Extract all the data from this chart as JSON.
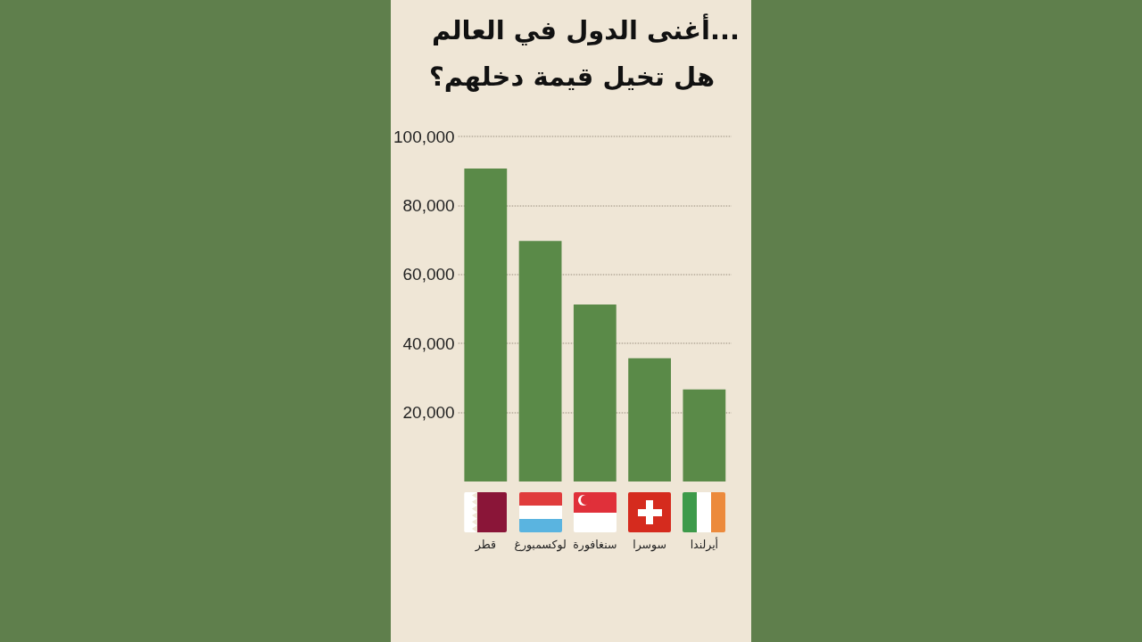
{
  "chart_data": {
    "type": "bar",
    "title": "أغنى الدول في العالم...",
    "subtitle": "هل تخيل قيمة دخلهم؟",
    "categories": [
      "قطر",
      "لوكسمبورغ",
      "سنغافورة",
      "سوسرا",
      "أيرلندا"
    ],
    "values": [
      90700,
      69700,
      51300,
      35700,
      26700
    ],
    "color": "#5a8a48",
    "ylim": [
      0,
      100000
    ],
    "yticks": [
      {
        "value": 20000,
        "label": "20,000"
      },
      {
        "value": 40000,
        "label": "40,000"
      },
      {
        "value": 60000,
        "label": "60,000"
      },
      {
        "value": 80000,
        "label": "80,000"
      },
      {
        "value": 100000,
        "label": "100,000"
      }
    ],
    "grid": "y"
  }
}
